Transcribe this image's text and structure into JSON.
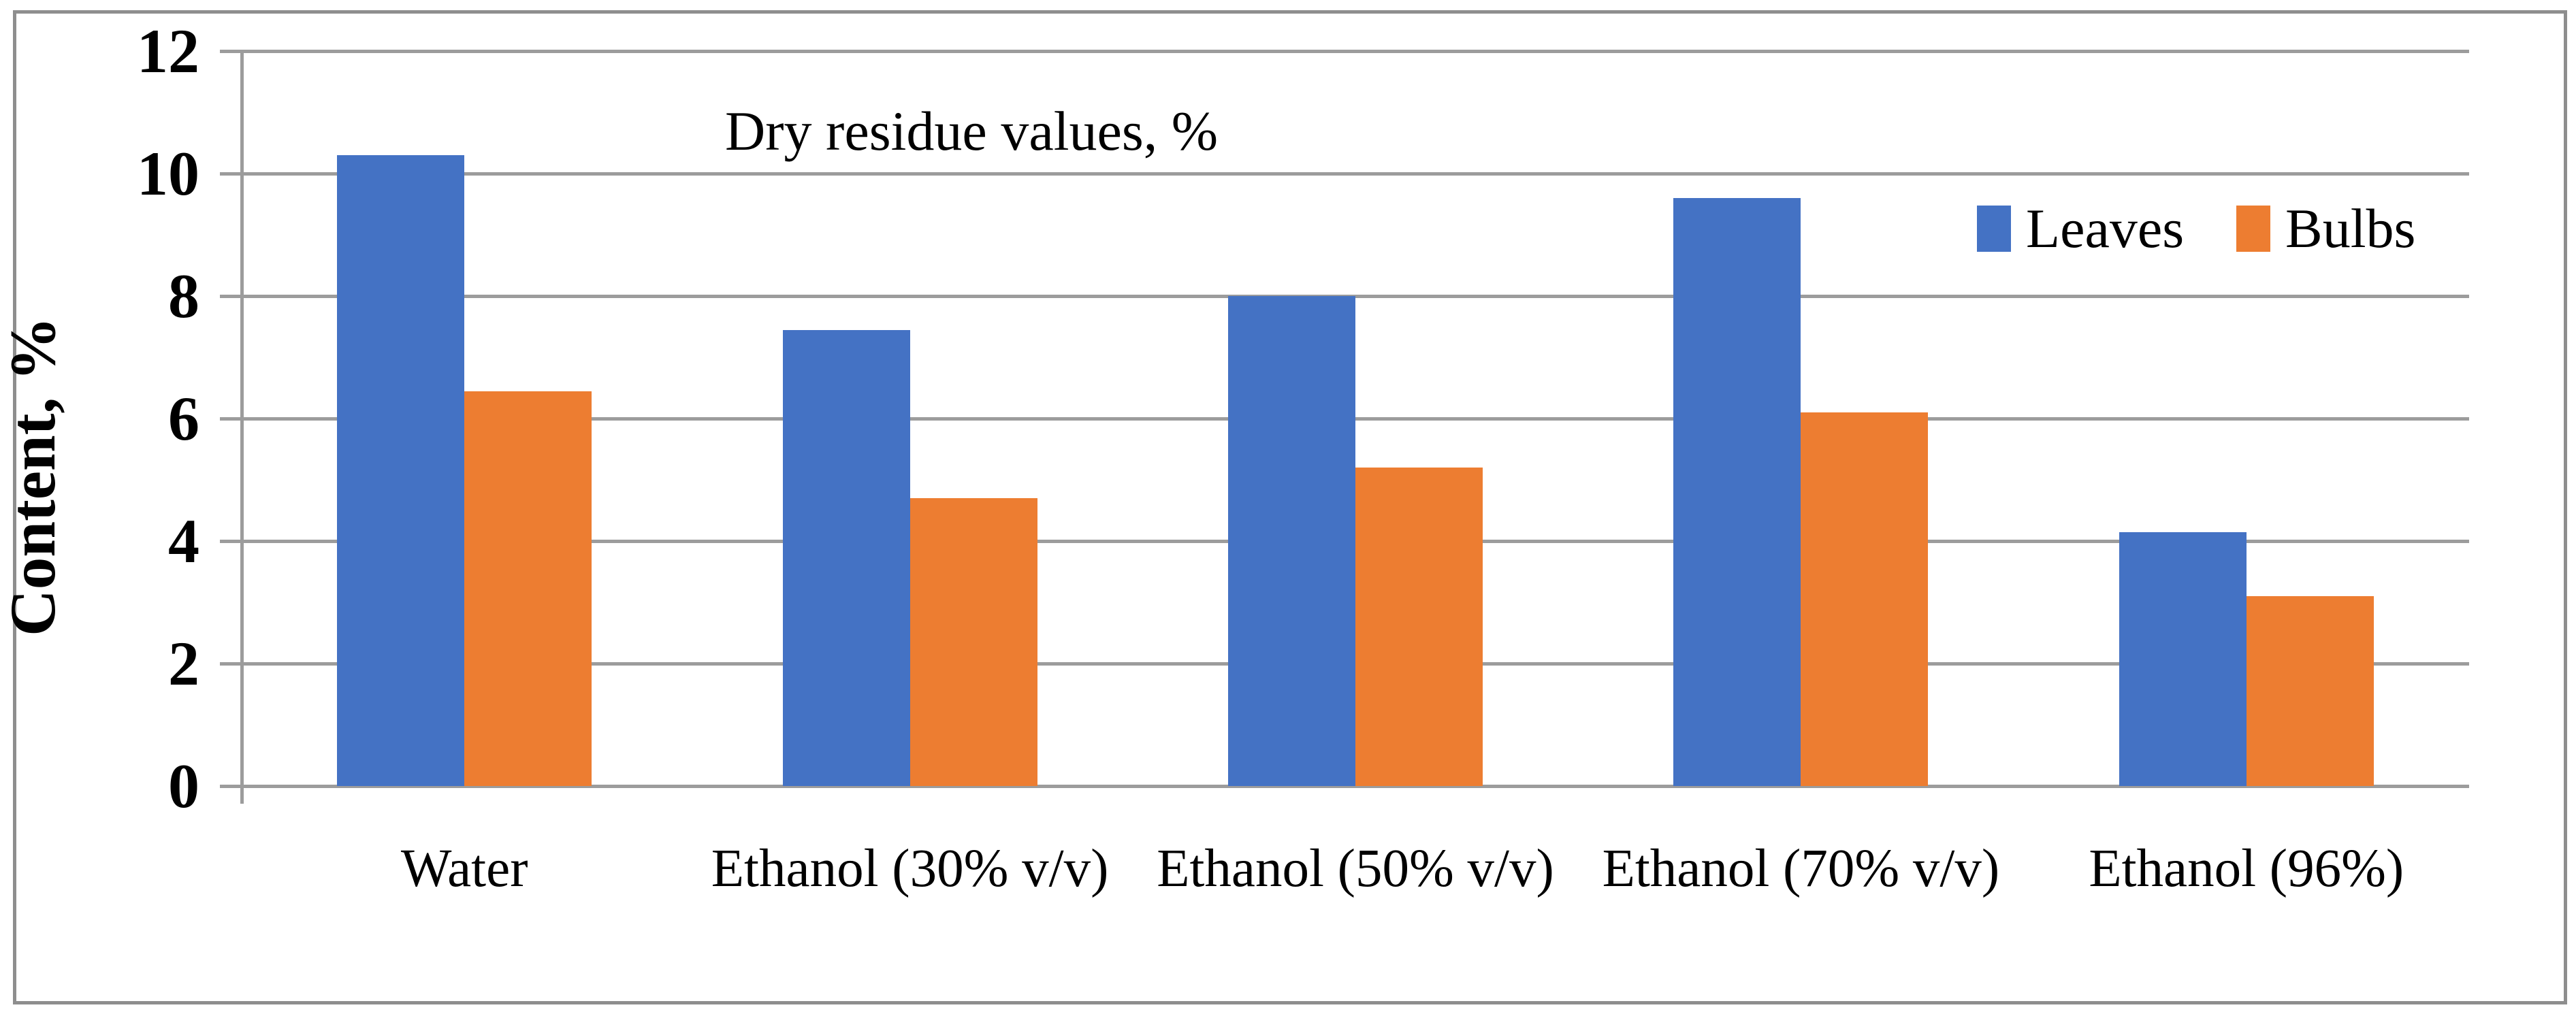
{
  "figure": {
    "border_color": "#8e8e8e",
    "background": "#ffffff",
    "gridline_color": "#9c9c9c",
    "text_color": "#000000"
  },
  "chart_data": {
    "type": "bar",
    "title": "Dry residue values, %",
    "categories": [
      "Water",
      "Ethanol (30% v/v)",
      "Ethanol (50% v/v)",
      "Ethanol (70% v/v)",
      "Ethanol (96%)"
    ],
    "series": [
      {
        "name": "Leaves",
        "color": "#4472C4",
        "values": [
          10.3,
          7.45,
          8.0,
          9.6,
          4.15
        ]
      },
      {
        "name": "Bulbs",
        "color": "#ED7D31",
        "values": [
          6.45,
          4.7,
          5.2,
          6.1,
          3.1
        ]
      }
    ],
    "xlabel": "",
    "ylabel": "Content, %",
    "ylim": [
      0,
      12
    ],
    "yticks": [
      0,
      2,
      4,
      6,
      8,
      10,
      12
    ],
    "grid": true,
    "legend_position": "top-right-inside"
  }
}
